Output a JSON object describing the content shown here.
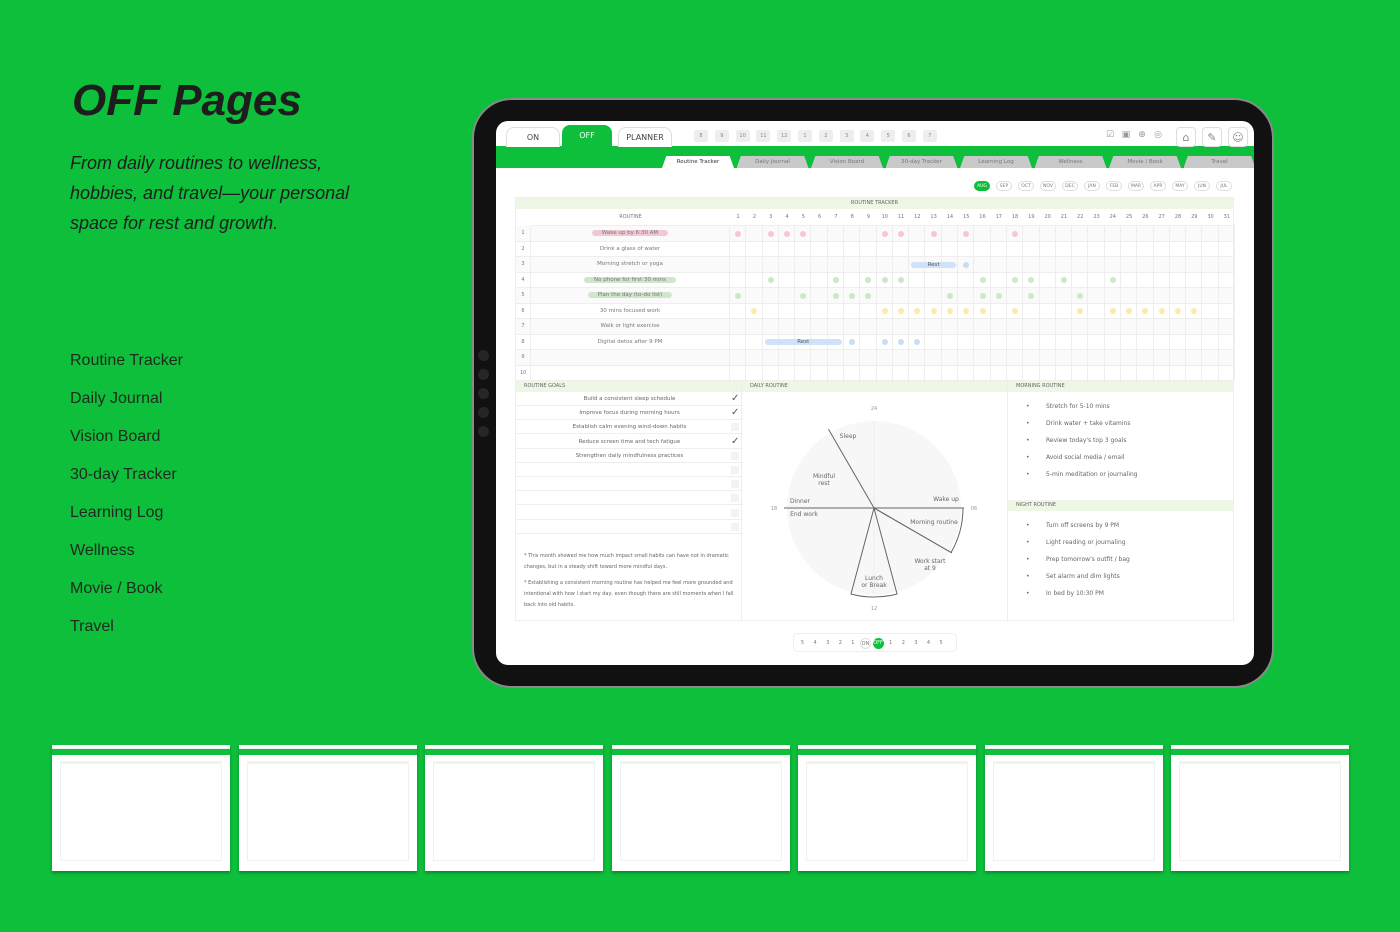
{
  "promo": {
    "title": "OFF Pages",
    "subtitle": "From daily routines to wellness, hobbies, and travel—your personal space for rest and growth.",
    "menu": [
      "Routine Tracker",
      "Daily Journal",
      "Vision Board",
      "30-day Tracker",
      "Learning Log",
      "Wellness",
      "Movie / Book",
      "Travel"
    ]
  },
  "colors": {
    "accent": "#0dbf3b",
    "pink": "#f2c9d3",
    "green": "#cfe6cc",
    "yellow": "#fde9a8",
    "blue": "#c6dcfa",
    "header_bg": "#eef6e6"
  },
  "topbar": {
    "tabs": [
      {
        "label": "ON",
        "active": false
      },
      {
        "label": "OFF",
        "active": true
      },
      {
        "label": "PLANNER",
        "active": false
      }
    ],
    "hours": [
      "8",
      "9",
      "10",
      "11",
      "12",
      "1",
      "2",
      "3",
      "4",
      "5",
      "6",
      "7"
    ],
    "icons": [
      "calendar-check-icon",
      "clipboard-icon",
      "globe-icon",
      "fingerprint-icon"
    ],
    "buttons": [
      "home-icon",
      "edit-icon",
      "smile-icon"
    ]
  },
  "sections": [
    {
      "label": "Routine Tracker",
      "active": true
    },
    {
      "label": "Daily Journal"
    },
    {
      "label": "Vision Board"
    },
    {
      "label": "30-day Tracker"
    },
    {
      "label": "Learning Log"
    },
    {
      "label": "Wellness"
    },
    {
      "label": "Movie / Book"
    },
    {
      "label": "Travel"
    }
  ],
  "months": {
    "items": [
      "AUG",
      "SEP",
      "OCT",
      "NOV",
      "DEC",
      "JAN",
      "FEB",
      "MAR",
      "APR",
      "MAY",
      "JUN",
      "JUL"
    ],
    "selected": "AUG"
  },
  "tracker": {
    "title": "ROUTINE TRACKER",
    "routine_header": "ROUTINE",
    "days": 31,
    "rows": [
      {
        "num": "1",
        "label": "Wake up by 6:30 AM",
        "highlight": "pink",
        "color": "pink",
        "days": [
          1,
          3,
          4,
          5,
          10,
          11,
          13,
          15,
          18
        ]
      },
      {
        "num": "2",
        "label": "Drink a glass of water",
        "days": []
      },
      {
        "num": "3",
        "label": "Morning stretch or yoga",
        "color": "blue",
        "days": [
          15
        ],
        "rest": {
          "label": "Rest",
          "from": 12,
          "to": 14
        }
      },
      {
        "num": "4",
        "label": "No phone for first 30 mins",
        "highlight": "green",
        "color": "green",
        "days": [
          3,
          7,
          9,
          10,
          11,
          16,
          18,
          19,
          21,
          24
        ]
      },
      {
        "num": "5",
        "label": "Plan the day (to-do list)",
        "highlight": "green",
        "color": "green",
        "days": [
          1,
          5,
          7,
          8,
          9,
          14,
          16,
          17,
          19,
          22
        ]
      },
      {
        "num": "6",
        "label": "30 mins focused work",
        "color": "yellow",
        "days": [
          2,
          10,
          11,
          12,
          13,
          14,
          15,
          16,
          18,
          22,
          24,
          25,
          26,
          27,
          28,
          29
        ]
      },
      {
        "num": "7",
        "label": "Walk or light exercise",
        "days": []
      },
      {
        "num": "8",
        "label": "Digital detox after 9 PM",
        "color": "blue",
        "days": [
          8,
          10,
          11,
          12
        ],
        "rest": {
          "label": "Rest",
          "from": 3,
          "to": 7
        }
      },
      {
        "num": "9",
        "label": "",
        "days": []
      },
      {
        "num": "10",
        "label": "",
        "days": []
      }
    ]
  },
  "goals": {
    "title": "ROUTINE GOALS",
    "items": [
      {
        "label": "Build a consistent sleep schedule",
        "checked": true
      },
      {
        "label": "Improve focus during morning hours",
        "checked": true
      },
      {
        "label": "Establish calm evening wind-down habits",
        "checked": false
      },
      {
        "label": "Reduce screen time and tech fatigue",
        "checked": true
      },
      {
        "label": "Strengthen daily mindfulness practices",
        "checked": false
      },
      {
        "label": "",
        "checked": false
      },
      {
        "label": "",
        "checked": false
      },
      {
        "label": "",
        "checked": false
      },
      {
        "label": "",
        "checked": false
      },
      {
        "label": "",
        "checked": false
      }
    ],
    "notes": [
      "* This month showed me how much impact small habits can have not in dramatic changes, but in a steady shift toward more mindful days.",
      "* Establishing a consistent morning routine has helped me feel more grounded and intentional with how I start my day, even though there are still moments when I fall back into old habits."
    ]
  },
  "chart_data": {
    "type": "pie",
    "title": "DAILY ROUTINE",
    "hour_labels": [
      "24",
      "06",
      "12",
      "18"
    ],
    "dividers_hours": [
      22,
      6,
      8,
      18
    ],
    "highlighted_sectors": [
      {
        "from": 6,
        "to": 8
      },
      {
        "from": 11,
        "to": 13
      }
    ],
    "labels": [
      {
        "text": "Sleep",
        "hour": 23
      },
      {
        "text": "Wake up",
        "hour": 5.5
      },
      {
        "text": "Morning routine",
        "hour": 7
      },
      {
        "text": "Work start at 9",
        "hour": 8.6
      },
      {
        "text": "Lunch or Break",
        "hour": 12
      },
      {
        "text": "End work",
        "hour": 18.5
      },
      {
        "text": "Dinner",
        "hour": 17.6
      },
      {
        "text": "Mindful rest",
        "hour": 20.5
      }
    ]
  },
  "morning": {
    "title": "MORNING ROUTINE",
    "items": [
      "Stretch for 5-10 mins",
      "Drink water + take vitamins",
      "Review today's top 3 goals",
      "Avoid social media / email",
      "5-min meditation or journaling"
    ]
  },
  "night": {
    "title": "NIGHT ROUTINE",
    "items": [
      "Turn off screens by 9 PM",
      "Light reading or journaling",
      "Prep tomorrow's outfit / bag",
      "Set alarm and dim lights",
      "In bed by 10:30 PM"
    ]
  },
  "pagination": {
    "items": [
      "5",
      "4",
      "3",
      "2",
      "1",
      "ON",
      "OFF",
      "1",
      "2",
      "3",
      "4",
      "5"
    ],
    "current": "OFF"
  },
  "thumbnails": 7
}
